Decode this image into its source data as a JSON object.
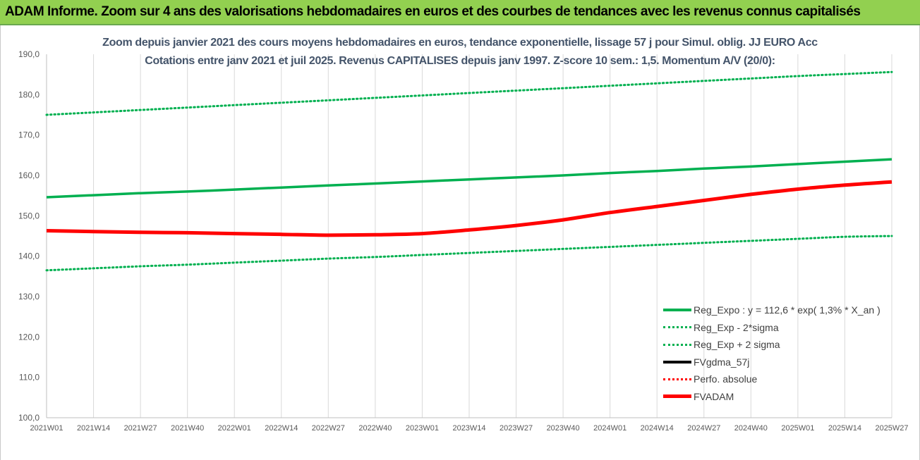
{
  "banner": {
    "title": "ADAM Informe. Zoom sur 4 ans des valorisations hebdomadaires en euros et des courbes de tendances avec les revenus connus capitalisés"
  },
  "chart_data": {
    "type": "line",
    "title": "Zoom depuis janvier 2021 des cours moyens hebdomadaires en euros, tendance exponentielle, lissage 57 j pour Simul. oblig. JJ EURO Acc",
    "subtitle": "Cotations entre janv 2021 et juil 2025. Revenus CAPITALISES depuis janv 1997. Z-score 10 sem.: 1,5. Momentum A/V (20/0):",
    "xlabel": "",
    "ylabel": "",
    "ylim": [
      100,
      190
    ],
    "y_ticks": [
      "100,0",
      "110,0",
      "120,0",
      "130,0",
      "140,0",
      "150,0",
      "160,0",
      "170,0",
      "180,0",
      "190,0"
    ],
    "x_ticks": [
      "2021W01",
      "2021W14",
      "2021W27",
      "2021W40",
      "2022W01",
      "2022W14",
      "2022W27",
      "2022W40",
      "2023W01",
      "2023W14",
      "2023W27",
      "2023W40",
      "2024W01",
      "2024W14",
      "2024W27",
      "2024W40",
      "2025W01",
      "2025W14",
      "2025W27"
    ],
    "grid": "vertical",
    "legend_position": "bottom-right",
    "series": [
      {
        "name": "Reg_Expo : y = 112,6 * exp( 1,3% *  X_an )",
        "color": "#00b050",
        "style": "solid",
        "values": [
          154.6,
          155.1,
          155.6,
          156.0,
          156.5,
          157.0,
          157.5,
          158.0,
          158.5,
          159.0,
          159.5,
          160.0,
          160.6,
          161.1,
          161.7,
          162.2,
          162.8,
          163.4,
          164.0
        ]
      },
      {
        "name": "Reg_Exp - 2*sigma",
        "color": "#00b050",
        "style": "dotted",
        "values": [
          136.5,
          137.0,
          137.5,
          137.9,
          138.4,
          138.9,
          139.4,
          139.8,
          140.3,
          140.8,
          141.3,
          141.8,
          142.3,
          142.8,
          143.3,
          143.8,
          144.3,
          144.8,
          145.0
        ]
      },
      {
        "name": "Reg_Exp + 2 sigma",
        "color": "#00b050",
        "style": "dotted",
        "values": [
          175.0,
          175.6,
          176.2,
          176.8,
          177.4,
          178.0,
          178.6,
          179.2,
          179.8,
          180.4,
          181.0,
          181.6,
          182.2,
          182.8,
          183.4,
          184.0,
          184.6,
          185.1,
          185.6
        ]
      },
      {
        "name": "FVgdma_57j",
        "color": "#000000",
        "style": "solid",
        "values": []
      },
      {
        "name": "Perfo. absolue",
        "color": "#ff0000",
        "style": "dotted",
        "values": []
      },
      {
        "name": "FVADAM",
        "color": "#ff0000",
        "style": "thick",
        "values": [
          146.3,
          146.1,
          145.9,
          145.8,
          145.6,
          145.4,
          145.2,
          145.3,
          145.6,
          146.5,
          147.6,
          149.0,
          150.8,
          152.3,
          153.8,
          155.3,
          156.6,
          157.6,
          158.4
        ]
      }
    ]
  }
}
